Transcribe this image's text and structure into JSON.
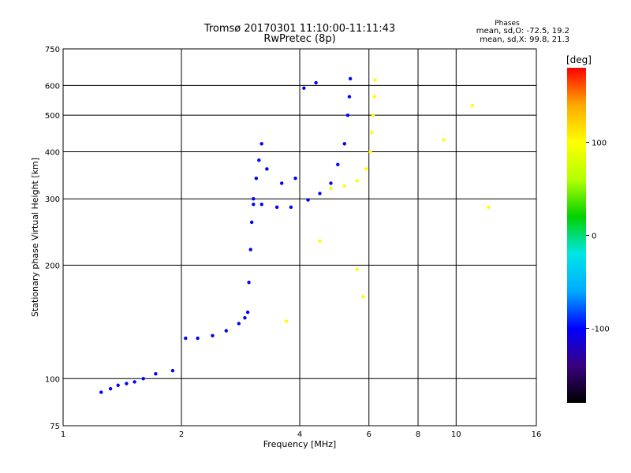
{
  "chart_data": {
    "type": "scatter",
    "title": "Tromsø 20170301 11:10:00-11:11:43",
    "subtitle": "RwPretec (8p)",
    "xlabel": "Frequency [MHz]",
    "ylabel": "Stationary phase Virtual Height [km]",
    "x_scale": "log",
    "y_scale": "log",
    "xlim": [
      1,
      16
    ],
    "ylim": [
      75,
      750
    ],
    "x_ticks": [
      1,
      2,
      4,
      6,
      8,
      10,
      16
    ],
    "x_tick_labels": [
      "1",
      "2",
      "4",
      "6",
      "8",
      "10",
      "16"
    ],
    "y_ticks": [
      75,
      100,
      200,
      300,
      400,
      500,
      600,
      750
    ],
    "y_tick_labels": [
      "75",
      "100",
      "200",
      "300",
      "400",
      "500",
      "600",
      "750"
    ],
    "grid": true,
    "stats": {
      "heading": "Phases",
      "line_o": "mean, sd,O: -72.5, 19.2",
      "line_x": "mean, sd,X:  99.8, 21.3"
    },
    "colorbar": {
      "label": "[deg]",
      "range": [
        -180,
        180
      ],
      "ticks": [
        100,
        0,
        -100
      ],
      "tick_labels": [
        "100",
        "0",
        "-100"
      ],
      "colormap": [
        "#000000",
        "#3a0080",
        "#0000ff",
        "#00aaff",
        "#00e6e6",
        "#00d200",
        "#b4ff00",
        "#ffff00",
        "#ffaa00",
        "#ff0000"
      ]
    },
    "series": [
      {
        "phase": -100,
        "values": [
          [
            1.25,
            92
          ],
          [
            1.32,
            94
          ],
          [
            1.38,
            96
          ],
          [
            1.45,
            97
          ],
          [
            1.52,
            98
          ],
          [
            1.6,
            100
          ],
          [
            1.72,
            103
          ],
          [
            1.9,
            105
          ],
          [
            2.05,
            128
          ],
          [
            2.2,
            128
          ],
          [
            2.4,
            130
          ],
          [
            2.6,
            134
          ],
          [
            2.8,
            140
          ],
          [
            2.9,
            145
          ],
          [
            2.95,
            150
          ],
          [
            2.97,
            180
          ],
          [
            3.0,
            220
          ],
          [
            3.02,
            260
          ],
          [
            3.05,
            290
          ],
          [
            3.2,
            290
          ],
          [
            3.5,
            285
          ],
          [
            3.8,
            285
          ],
          [
            4.2,
            298
          ],
          [
            4.5,
            310
          ],
          [
            4.8,
            330
          ],
          [
            5.0,
            370
          ],
          [
            5.2,
            420
          ],
          [
            5.3,
            500
          ],
          [
            5.35,
            560
          ],
          [
            5.38,
            625
          ],
          [
            3.05,
            300
          ],
          [
            3.1,
            340
          ],
          [
            3.15,
            380
          ],
          [
            3.2,
            420
          ],
          [
            3.3,
            360
          ],
          [
            3.6,
            330
          ],
          [
            3.9,
            340
          ],
          [
            4.1,
            590
          ],
          [
            4.4,
            610
          ]
        ]
      },
      {
        "phase": 100,
        "values": [
          [
            4.8,
            320
          ],
          [
            5.2,
            325
          ],
          [
            5.6,
            335
          ],
          [
            5.9,
            360
          ],
          [
            6.05,
            400
          ],
          [
            6.1,
            450
          ],
          [
            6.15,
            500
          ],
          [
            6.2,
            560
          ],
          [
            6.22,
            620
          ],
          [
            3.7,
            142
          ],
          [
            4.5,
            232
          ],
          [
            5.6,
            195
          ],
          [
            5.8,
            165
          ],
          [
            9.3,
            430
          ],
          [
            11.0,
            530
          ],
          [
            12.1,
            285
          ]
        ]
      }
    ]
  }
}
